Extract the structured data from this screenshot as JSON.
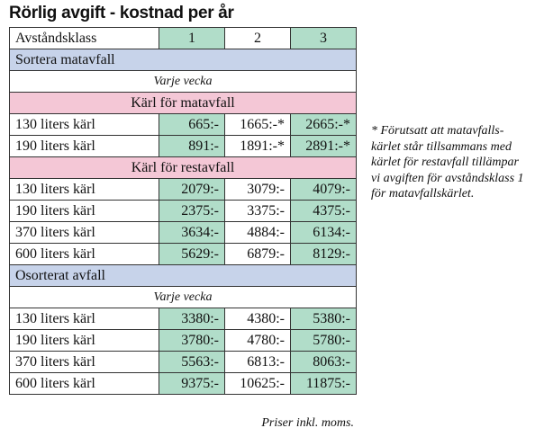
{
  "title": "Rörlig avgift - kostnad per år",
  "header": {
    "label": "Avståndsklass",
    "classes": [
      "1",
      "2",
      "3"
    ]
  },
  "section_sorted": {
    "label": "Sortera matavfall",
    "frequency": "Varje vecka",
    "food_bins": {
      "label": "Kärl för matavfall",
      "rows": [
        {
          "label": "130 liters kärl",
          "values": [
            "665:-",
            "1665:-*",
            "2665:-*"
          ]
        },
        {
          "label": "190 liters kärl",
          "values": [
            "891:-",
            "1891:-*",
            "2891:-*"
          ]
        }
      ]
    },
    "residual_bins": {
      "label": "Kärl för restavfall",
      "rows": [
        {
          "label": "130 liters kärl",
          "values": [
            "2079:-",
            "3079:-",
            "4079:-"
          ]
        },
        {
          "label": "190 liters kärl",
          "values": [
            "2375:-",
            "3375:-",
            "4375:-"
          ]
        },
        {
          "label": "370 liters kärl",
          "values": [
            "3634:-",
            "4884:-",
            "6134:-"
          ]
        },
        {
          "label": "600 liters kärl",
          "values": [
            "5629:-",
            "6879:-",
            "8129:-"
          ]
        }
      ]
    }
  },
  "section_unsorted": {
    "label": "Osorterat avfall",
    "frequency": "Varje vecka",
    "rows": [
      {
        "label": "130 liters kärl",
        "values": [
          "3380:-",
          "4380:-",
          "5380:-"
        ]
      },
      {
        "label": "190 liters kärl",
        "values": [
          "3780:-",
          "4780:-",
          "5780:-"
        ]
      },
      {
        "label": "370 liters kärl",
        "values": [
          "5563:-",
          "6813:-",
          "8063:-"
        ]
      },
      {
        "label": "600 liters kärl",
        "values": [
          "9375:-",
          "10625:-",
          "11875:-"
        ]
      }
    ]
  },
  "footnote": {
    "lines": [
      "* Förutsatt att matavfalls-",
      "kärlet står tillsammans med",
      "kärlet för restavfall tillämpar",
      "vi avgiften för avståndsklass 1",
      "för matavfallskärlet."
    ]
  },
  "prices_note": "Priser inkl. moms.",
  "colors": {
    "green": "#b1ddc9",
    "blue": "#c7d3ea",
    "pink": "#f4c7d6"
  }
}
